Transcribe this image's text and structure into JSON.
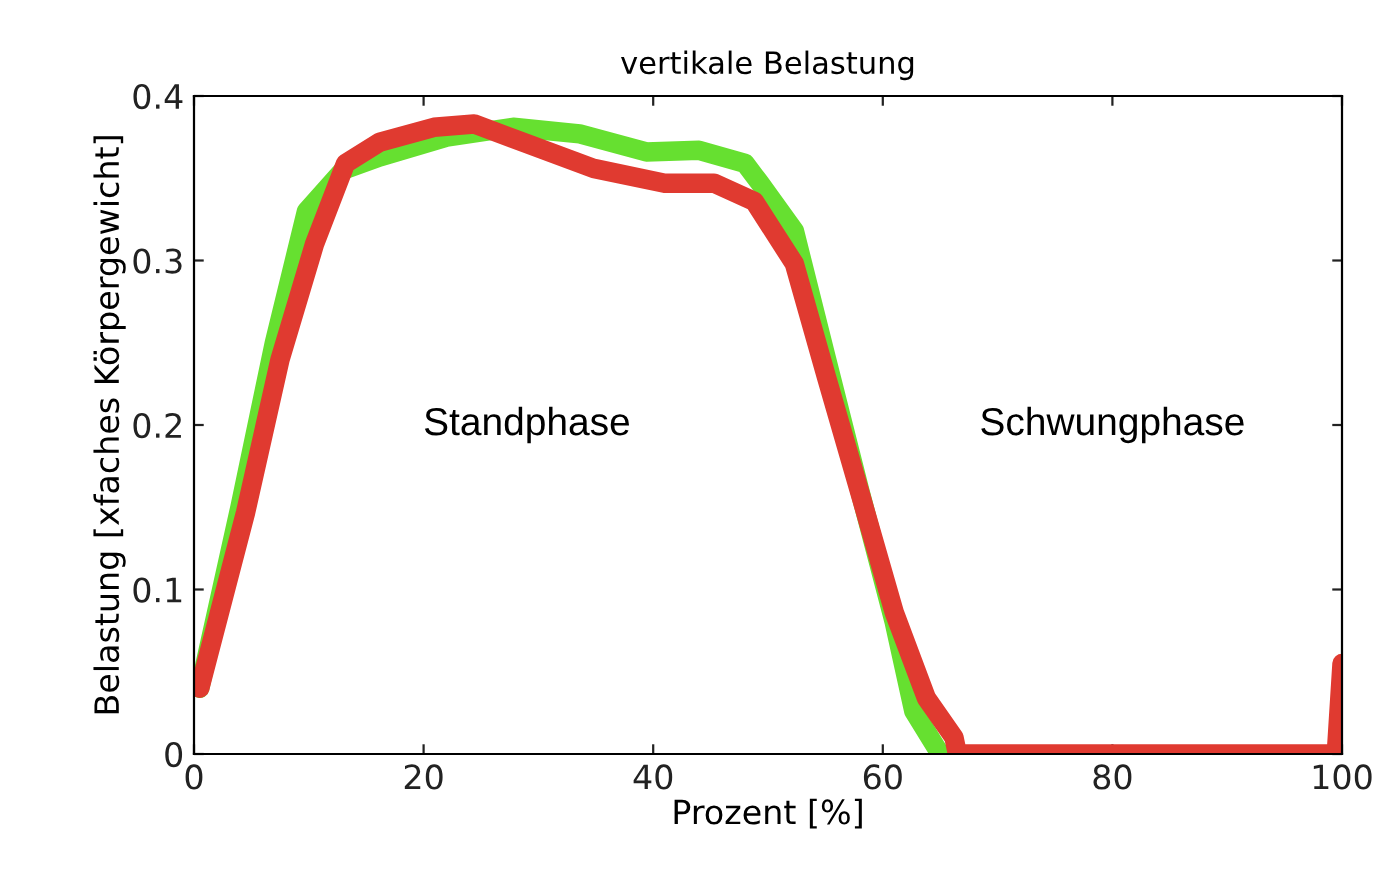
{
  "chart_data": {
    "type": "line",
    "title": "vertikale Belastung",
    "xlabel": "Prozent [%]",
    "ylabel": "Belastung [xfaches Körpergewicht]",
    "xlim": [
      0,
      100
    ],
    "ylim": [
      0,
      0.4
    ],
    "xticks": [
      0,
      20,
      40,
      60,
      80,
      100
    ],
    "yticks": [
      0,
      0.1,
      0.2,
      0.3,
      0.4
    ],
    "grid": false,
    "legend": false,
    "series": [
      {
        "color": "#66e030",
        "x": [
          0.5,
          4,
          7,
          9.8,
          13,
          16.2,
          22,
          27.8,
          33.6,
          39.4,
          44,
          48,
          49.3,
          52.3,
          55.1,
          58,
          61,
          62.7,
          65
        ],
        "values": [
          0.04,
          0.15,
          0.25,
          0.33,
          0.355,
          0.363,
          0.375,
          0.381,
          0.377,
          0.366,
          0.367,
          0.359,
          0.347,
          0.318,
          0.24,
          0.16,
          0.08,
          0.026,
          0.0
        ]
      },
      {
        "color": "#e03a30",
        "x": [
          0.5,
          4.5,
          7.5,
          10.5,
          13.2,
          16.2,
          20.9,
          24.4,
          29,
          34.8,
          41,
          45.3,
          48.8,
          52.3,
          55.1,
          58,
          61,
          63.8,
          66.2,
          66.5,
          99.5,
          100
        ],
        "values": [
          0.04,
          0.147,
          0.24,
          0.31,
          0.359,
          0.372,
          0.381,
          0.383,
          0.371,
          0.356,
          0.347,
          0.347,
          0.336,
          0.298,
          0.229,
          0.159,
          0.086,
          0.034,
          0.01,
          0.0,
          0.0,
          0.055
        ]
      }
    ],
    "annotations": [
      "Standphase",
      "Schwungphase"
    ]
  }
}
